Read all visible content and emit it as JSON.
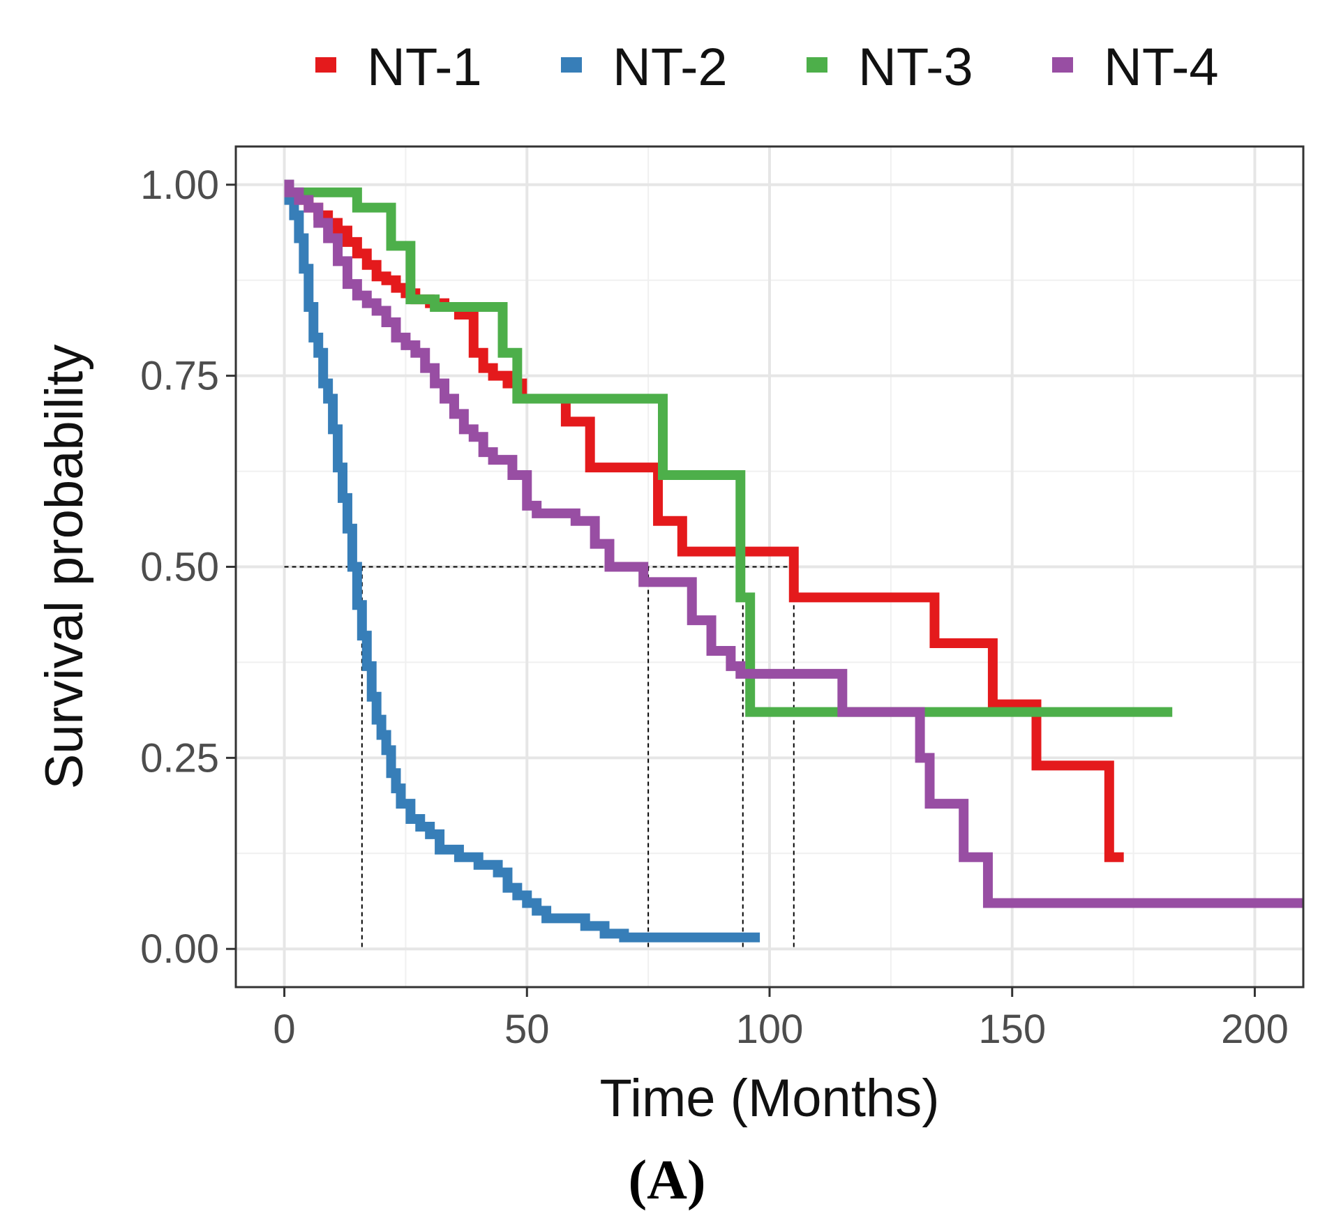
{
  "chart_data": {
    "type": "line",
    "subtype": "kaplan-meier-step",
    "title": "",
    "xlabel": "Time (Months)",
    "ylabel": "Survival probability",
    "xlim": [
      -10,
      210
    ],
    "ylim": [
      -0.05,
      1.05
    ],
    "x_ticks": [
      0,
      50,
      100,
      150,
      200
    ],
    "x_tick_labels": [
      "0",
      "50",
      "100",
      "150",
      "200"
    ],
    "y_ticks": [
      0,
      0.25,
      0.5,
      0.75,
      1.0
    ],
    "y_tick_labels": [
      "0.00",
      "0.25",
      "0.50",
      "0.75",
      "1.00"
    ],
    "x_minor_ticks": [
      25,
      75,
      125,
      175
    ],
    "y_minor_ticks": [
      0.125,
      0.375,
      0.625,
      0.875
    ],
    "grid": true,
    "legend_position": "top",
    "panel_label": "(A)",
    "median_line": {
      "y": 0.5,
      "x_start": 0,
      "x_end": 105,
      "drops": [
        16,
        75,
        94.5,
        105
      ]
    },
    "series": [
      {
        "name": "NT-1",
        "color": "#e41a1c",
        "x": [
          0,
          1,
          3,
          5,
          7,
          9,
          11,
          13,
          15,
          17,
          19,
          21,
          23,
          25,
          27,
          30,
          33,
          36,
          39,
          41,
          43,
          46,
          49,
          52,
          56,
          58,
          63,
          70,
          72,
          77,
          79,
          82,
          90,
          94,
          100,
          105,
          110,
          120,
          134,
          140,
          146,
          152,
          155,
          162,
          170,
          173
        ],
        "y": [
          1.0,
          0.985,
          0.98,
          0.97,
          0.96,
          0.95,
          0.94,
          0.925,
          0.91,
          0.895,
          0.88,
          0.875,
          0.865,
          0.858,
          0.85,
          0.845,
          0.84,
          0.83,
          0.78,
          0.76,
          0.75,
          0.74,
          0.72,
          0.72,
          0.72,
          0.69,
          0.63,
          0.63,
          0.63,
          0.56,
          0.56,
          0.52,
          0.52,
          0.52,
          0.52,
          0.46,
          0.46,
          0.46,
          0.4,
          0.4,
          0.32,
          0.32,
          0.24,
          0.24,
          0.12,
          0.12
        ]
      },
      {
        "name": "NT-2",
        "color": "#377eb8",
        "x": [
          0,
          1,
          2,
          3,
          4,
          5,
          6,
          7,
          8,
          9,
          10,
          11,
          12,
          13,
          14,
          15,
          16,
          17,
          18,
          19,
          20,
          21,
          22,
          23,
          24,
          26,
          28,
          30,
          32,
          34,
          36,
          38,
          40,
          44,
          46,
          48,
          50,
          52,
          54,
          58,
          62,
          66,
          70,
          75,
          80,
          90,
          98
        ],
        "y": [
          1.0,
          0.98,
          0.96,
          0.93,
          0.89,
          0.84,
          0.8,
          0.78,
          0.74,
          0.72,
          0.68,
          0.63,
          0.59,
          0.55,
          0.5,
          0.45,
          0.41,
          0.37,
          0.33,
          0.3,
          0.28,
          0.26,
          0.23,
          0.21,
          0.19,
          0.17,
          0.16,
          0.15,
          0.13,
          0.13,
          0.12,
          0.12,
          0.11,
          0.1,
          0.08,
          0.07,
          0.06,
          0.05,
          0.04,
          0.04,
          0.03,
          0.02,
          0.015,
          0.015,
          0.015,
          0.015,
          0.015
        ]
      },
      {
        "name": "NT-3",
        "color": "#4daf4a",
        "x": [
          0,
          1,
          15,
          22,
          26,
          31,
          33,
          45,
          48,
          52,
          55,
          78,
          85,
          94,
          96,
          100,
          110,
          140,
          160,
          183
        ],
        "y": [
          0.99,
          0.99,
          0.97,
          0.92,
          0.85,
          0.84,
          0.84,
          0.78,
          0.72,
          0.72,
          0.72,
          0.62,
          0.62,
          0.46,
          0.31,
          0.31,
          0.31,
          0.31,
          0.31,
          0.31
        ]
      },
      {
        "name": "NT-4",
        "color": "#984ea3",
        "x": [
          0,
          1,
          3,
          5,
          7,
          9,
          11,
          13,
          15,
          17,
          19,
          21,
          23,
          25,
          27,
          29,
          31,
          33,
          35,
          37,
          39,
          41,
          43,
          47,
          50,
          52,
          60,
          64,
          67,
          74,
          76,
          84,
          88,
          92,
          94,
          98,
          115,
          125,
          131,
          133,
          136,
          140,
          145,
          160,
          190,
          210
        ],
        "y": [
          1.0,
          0.99,
          0.98,
          0.97,
          0.95,
          0.93,
          0.9,
          0.87,
          0.855,
          0.845,
          0.835,
          0.82,
          0.8,
          0.79,
          0.78,
          0.76,
          0.74,
          0.72,
          0.7,
          0.68,
          0.67,
          0.65,
          0.64,
          0.62,
          0.58,
          0.57,
          0.56,
          0.53,
          0.5,
          0.48,
          0.48,
          0.43,
          0.39,
          0.37,
          0.36,
          0.36,
          0.31,
          0.31,
          0.25,
          0.19,
          0.19,
          0.12,
          0.06,
          0.06,
          0.06,
          0.06
        ]
      }
    ]
  }
}
